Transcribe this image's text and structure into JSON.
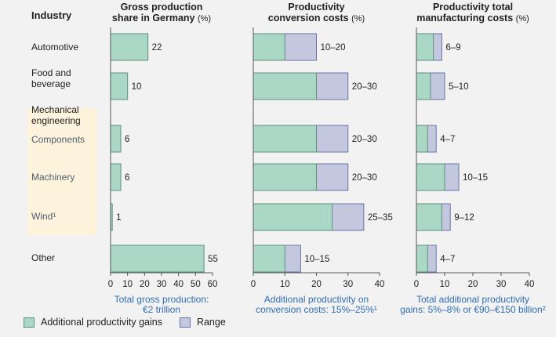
{
  "colors": {
    "gain": "#aad7c6",
    "gain_border": "#5e8f7c",
    "range": "#c3c8df",
    "range_border": "#6a74a6",
    "axis": "#555555",
    "highlight": "#fdf3dc",
    "footnote": "#2f6db3"
  },
  "header": {
    "industry_label": "Industry"
  },
  "industries": [
    {
      "label": "Automotive",
      "style": "plain"
    },
    {
      "label": "Food and\nbeverage",
      "style": "plain"
    },
    {
      "label": "Mechanical\nengineering",
      "style": "group"
    },
    {
      "label": "Components",
      "style": "sub"
    },
    {
      "label": "Machinery",
      "style": "sub"
    },
    {
      "label": "Wind¹",
      "style": "sub"
    },
    {
      "label": "Other",
      "style": "plain"
    }
  ],
  "legend": {
    "gain_label": "Additional productivity gains",
    "range_label": "Range"
  },
  "chart_data": [
    {
      "type": "bar",
      "title_line1": "Gross production",
      "title_line2": "share in Germany",
      "title_unit": "(%)",
      "categories": [
        "Automotive",
        "Food and beverage",
        "Components",
        "Machinery",
        "Wind",
        "Other"
      ],
      "values": [
        22,
        10,
        6,
        6,
        1,
        55
      ],
      "labels": [
        "22",
        "10",
        "6",
        "6",
        "1",
        "55"
      ],
      "ticks": [
        "0",
        "10",
        "20",
        "30",
        "40",
        "50",
        "60"
      ],
      "xlim": [
        0,
        60
      ],
      "footnote_line1": "Total gross production:",
      "footnote_line2": "€2 trillion"
    },
    {
      "type": "bar",
      "title_line1": "Productivity",
      "title_line2": "conversion costs",
      "title_unit": "(%)",
      "categories": [
        "Automotive",
        "Food and beverage",
        "Components",
        "Machinery",
        "Wind",
        "Other"
      ],
      "series": [
        {
          "name": "Additional productivity gains",
          "values": [
            10,
            20,
            20,
            20,
            25,
            10
          ]
        },
        {
          "name": "Range",
          "values": [
            20,
            30,
            30,
            30,
            35,
            15
          ]
        }
      ],
      "labels": [
        "10–20",
        "20–30",
        "20–30",
        "20–30",
        "25–35",
        "10–15"
      ],
      "ticks": [
        "0",
        "10",
        "20",
        "30",
        "40"
      ],
      "xlim": [
        0,
        40
      ],
      "footnote_line1": "Additional productivity on",
      "footnote_line2": "conversion costs: 15%–25%¹"
    },
    {
      "type": "bar",
      "title_line1": "Productivity total",
      "title_line2": "manufacturing costs",
      "title_unit": "(%)",
      "categories": [
        "Automotive",
        "Food and beverage",
        "Components",
        "Machinery",
        "Wind",
        "Other"
      ],
      "series": [
        {
          "name": "Additional productivity gains",
          "values": [
            6,
            5,
            4,
            10,
            9,
            4
          ]
        },
        {
          "name": "Range",
          "values": [
            9,
            10,
            7,
            15,
            12,
            7
          ]
        }
      ],
      "labels": [
        "6–9",
        "5–10",
        "4–7",
        "10–15",
        "9–12",
        "4–7"
      ],
      "ticks": [
        "0",
        "10",
        "20",
        "30",
        "40"
      ],
      "xlim": [
        0,
        40
      ],
      "footnote_line1": "Total additional productivity",
      "footnote_line2": "gains: 5%–8% or €90–€150 billion²"
    }
  ]
}
